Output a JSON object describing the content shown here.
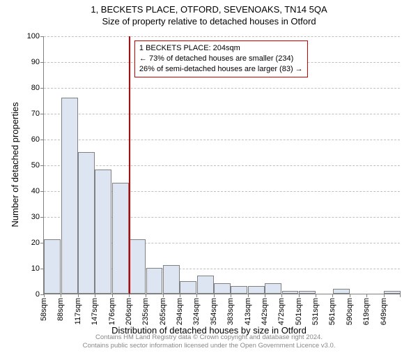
{
  "titles": {
    "line1": "1, BECKETS PLACE, OTFORD, SEVENOAKS, TN14 5QA",
    "line2": "Size of property relative to detached houses in Otford"
  },
  "ylabel": "Number of detached properties",
  "xlabel": "Distribution of detached houses by size in Otford",
  "footer": {
    "line1": "Contains HM Land Registry data © Crown copyright and database right 2024.",
    "line2": "Contains public sector information licensed under the Open Government Licence v3.0."
  },
  "annotation": {
    "line1": "1 BECKETS PLACE: 204sqm",
    "line2": "← 73% of detached houses are smaller (234)",
    "line3": "26% of semi-detached houses are larger (83) →"
  },
  "chart": {
    "type": "histogram",
    "ylim": [
      0,
      100
    ],
    "ytick_step": 10,
    "background_color": "#ffffff",
    "grid_color": "#c0c0c0",
    "axis_color": "#808080",
    "bar_border_color": "#808080",
    "bar_fill_color": "#dde5f2",
    "marker_color": "#cc0000",
    "marker_x_index": 5.0,
    "categories": [
      "58sqm",
      "88sqm",
      "117sqm",
      "147sqm",
      "176sqm",
      "206sqm",
      "235sqm",
      "265sqm",
      "294sqm",
      "324sqm",
      "354sqm",
      "383sqm",
      "413sqm",
      "442sqm",
      "472sqm",
      "501sqm",
      "531sqm",
      "561sqm",
      "590sqm",
      "619sqm",
      "649sqm"
    ],
    "values": [
      21,
      76,
      55,
      48,
      43,
      21,
      10,
      11,
      5,
      7,
      4,
      3,
      3,
      4,
      1,
      1,
      0,
      2,
      0,
      0,
      1
    ],
    "title_fontsize": 13,
    "label_fontsize": 13,
    "tick_fontsize": 11,
    "annot_fontsize": 11
  }
}
